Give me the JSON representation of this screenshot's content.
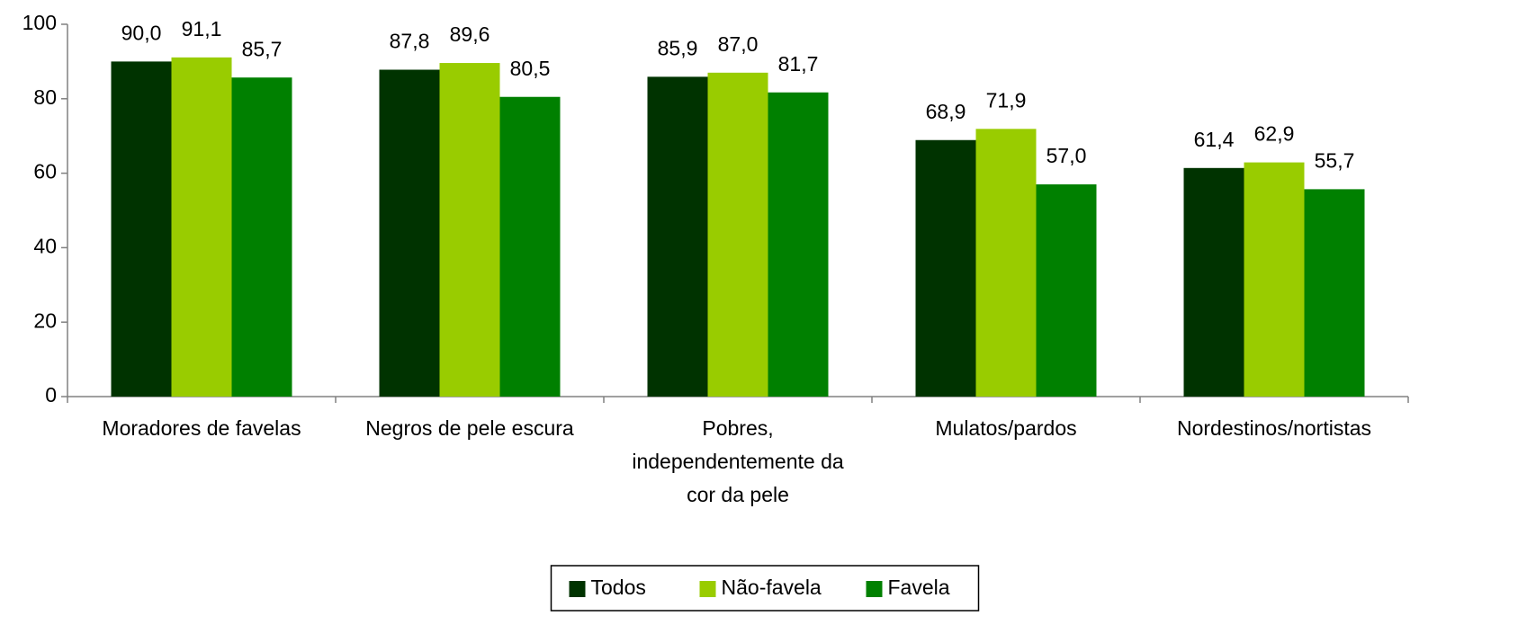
{
  "chart_data": {
    "type": "bar",
    "categories": [
      "Moradores de favelas",
      "Negros de pele escura",
      "Pobres,\nindependentemente da\ncor da pele",
      "Mulatos/pardos",
      "Nordestinos/nortistas"
    ],
    "series": [
      {
        "name": "Todos",
        "color": "#003300",
        "values": [
          90.0,
          87.8,
          85.9,
          68.9,
          61.4
        ],
        "value_labels": [
          "90,0",
          "87,8",
          "85,9",
          "68,9",
          "61,4"
        ]
      },
      {
        "name": "Não-favela",
        "color": "#99cc00",
        "values": [
          91.1,
          89.6,
          87.0,
          71.9,
          62.9
        ],
        "value_labels": [
          "91,1",
          "89,6",
          "87,0",
          "71,9",
          "62,9"
        ]
      },
      {
        "name": "Favela",
        "color": "#008000",
        "values": [
          85.7,
          80.5,
          81.7,
          57.0,
          55.7
        ],
        "value_labels": [
          "85,7",
          "80,5",
          "81,7",
          "57,0",
          "55,7"
        ]
      }
    ],
    "ylim": [
      0,
      100
    ],
    "yticks": [
      0,
      20,
      40,
      60,
      80,
      100
    ],
    "grid": false,
    "legend": "bottom"
  }
}
